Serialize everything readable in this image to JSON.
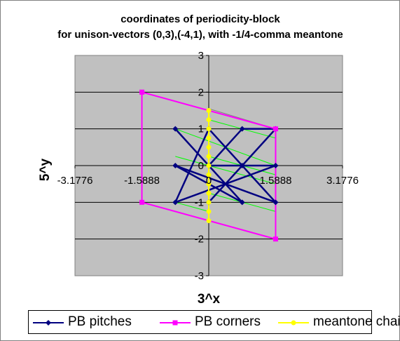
{
  "chart_data": {
    "type": "scatter",
    "title": "coordinates of periodicity-block",
    "subtitle": "for unison-vectors (0,3),(-4,1), with -1/4-comma meantone",
    "xlabel": "3^x",
    "ylabel": "5^y",
    "xlim": [
      -3.1776,
      3.1776
    ],
    "ylim": [
      -3,
      3
    ],
    "x_ticks": [
      "-3.1776",
      "-1.5888",
      "0",
      "1.5888",
      "3.1776"
    ],
    "y_ticks": [
      "3",
      "2",
      "1",
      "0",
      "-1",
      "-2",
      "-3"
    ],
    "grid": "horizontal",
    "legend_position": "bottom",
    "series": [
      {
        "name": "PB pitches",
        "color": "#000080",
        "points": [
          [
            -0.794,
            1
          ],
          [
            0.794,
            -1
          ],
          [
            -0.794,
            0
          ],
          [
            1.588,
            -1
          ],
          [
            0,
            1
          ],
          [
            -0.794,
            -1
          ],
          [
            1.588,
            0
          ],
          [
            0,
            0
          ],
          [
            0.794,
            1
          ],
          [
            1.588,
            1
          ],
          [
            0,
            -1
          ],
          [
            0.794,
            0
          ]
        ]
      },
      {
        "name": "PB corners",
        "color": "#ff00ff",
        "points": [
          [
            -1.588,
            2
          ],
          [
            1.588,
            1
          ],
          [
            1.588,
            -2
          ],
          [
            -1.588,
            -1
          ],
          [
            -1.588,
            2
          ]
        ]
      },
      {
        "name": "meantone chain",
        "color": "#ffff00",
        "points": [
          [
            0,
            -1.5
          ],
          [
            0,
            -1.25
          ],
          [
            0,
            -1
          ],
          [
            0,
            -0.75
          ],
          [
            0,
            -0.5
          ],
          [
            0,
            -0.25
          ],
          [
            0,
            0
          ],
          [
            0,
            0.25
          ],
          [
            0,
            0.5
          ],
          [
            0,
            0.75
          ],
          [
            0,
            1
          ],
          [
            0,
            1.25
          ],
          [
            0,
            1.5
          ]
        ]
      }
    ],
    "extra_lines": [
      {
        "color": "#00ff00",
        "points": [
          [
            -0.794,
            1
          ],
          [
            1.588,
            0
          ]
        ]
      },
      {
        "color": "#00ff00",
        "points": [
          [
            -0.794,
            0
          ],
          [
            1.588,
            -1
          ]
        ]
      },
      {
        "color": "#00ff00",
        "points": [
          [
            -0.794,
            -1
          ],
          [
            0,
            -1.25
          ]
        ]
      },
      {
        "color": "#00ff00",
        "points": [
          [
            0,
            1.5
          ],
          [
            1.588,
            1
          ]
        ]
      },
      {
        "color": "#00ff00",
        "points": [
          [
            0,
            1.25
          ],
          [
            1.588,
            0.75
          ]
        ]
      },
      {
        "color": "#00ff00",
        "points": [
          [
            0,
            0.25
          ],
          [
            1.588,
            -0.25
          ]
        ]
      },
      {
        "color": "#00ff00",
        "points": [
          [
            -0.794,
            0.25
          ],
          [
            1.588,
            -0.5
          ]
        ]
      },
      {
        "color": "#00ff00",
        "points": [
          [
            0,
            -0.75
          ],
          [
            1.588,
            -1.25
          ]
        ]
      },
      {
        "color": "#808080",
        "points": [
          [
            0,
            1.55
          ],
          [
            1.588,
            1
          ]
        ]
      }
    ]
  }
}
